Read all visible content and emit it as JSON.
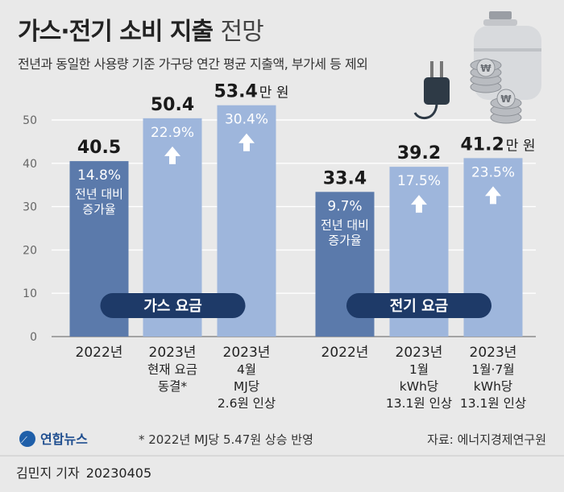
{
  "header": {
    "title_bold": "가스·전기 소비 지출",
    "title_light": "전망",
    "subtitle": "전년과 동일한 사용량 기준 가구당 연간 평균 지출액, 부가세 등 제외"
  },
  "chart_data": {
    "type": "bar",
    "unit": "만 원",
    "ylim": [
      0,
      50
    ],
    "yticks": [
      "0",
      "10",
      "20",
      "30",
      "40",
      "50"
    ],
    "groups": [
      {
        "name": "가스 요금",
        "bars": [
          {
            "value": 40.5,
            "label": "40.5",
            "pct": "14.8%",
            "note": [
              "전년 대비",
              "증가율"
            ],
            "xlabel": [
              "2022년"
            ],
            "arrow": false
          },
          {
            "value": 50.4,
            "label": "50.4",
            "pct": "22.9%",
            "note": [],
            "xlabel": [
              "2023년",
              "현재 요금",
              "동결*"
            ],
            "arrow": true
          },
          {
            "value": 53.4,
            "label": "53.4",
            "unit_suffix": "만 원",
            "pct": "30.4%",
            "note": [],
            "xlabel": [
              "2023년",
              "4월",
              "MJ당",
              "2.6원 인상"
            ],
            "arrow": true
          }
        ]
      },
      {
        "name": "전기 요금",
        "bars": [
          {
            "value": 33.4,
            "label": "33.4",
            "pct": "9.7%",
            "note": [
              "전년 대비",
              "증가율"
            ],
            "xlabel": [
              "2022년"
            ],
            "arrow": false
          },
          {
            "value": 39.2,
            "label": "39.2",
            "pct": "17.5%",
            "note": [],
            "xlabel": [
              "2023년",
              "1월",
              "kWh당",
              "13.1원 인상"
            ],
            "arrow": true
          },
          {
            "value": 41.2,
            "label": "41.2",
            "unit_suffix": "만 원",
            "pct": "23.5%",
            "note": [],
            "xlabel": [
              "2023년",
              "1월·7월",
              "kWh당",
              "13.1원 인상"
            ],
            "arrow": true
          }
        ]
      }
    ]
  },
  "footer": {
    "logo": "연합뉴스",
    "footnote": "* 2022년 MJ당 5.47원 상승 반영",
    "source": "자료: 에너지경제연구원",
    "author": "김민지 기자",
    "date": "20230405"
  },
  "colors": {
    "background": "#e9e9e9",
    "bar_base": "#5b7aab",
    "bar_light": "#9eb6dc",
    "pill": "#1e3a68",
    "grid": "#ffffff"
  }
}
